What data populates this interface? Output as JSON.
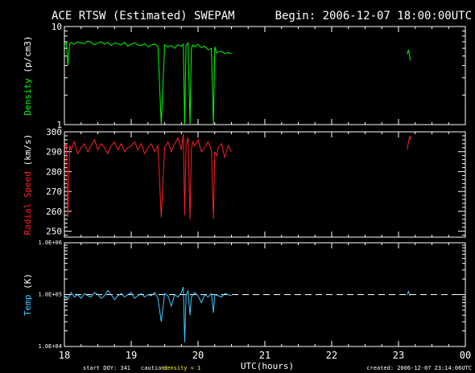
{
  "title": "ACE RTSW (Estimated) SWEPAM",
  "begin_label": "Begin: 2006-12-07 18:00:00UTC",
  "footer": {
    "start_doy": "start DOY: 341",
    "caution_label": "caution:",
    "caution_value": "density < 1",
    "xlabel": "UTC(hours)",
    "created": "created: 2006-12-07 23:14:06UTC"
  },
  "colors": {
    "background": "#000000",
    "frame": "#ffffff",
    "density": "#00ff00",
    "speed": "#ff2020",
    "temp": "#40c8ff",
    "caution": "#ffff00"
  },
  "chart_data": [
    {
      "type": "line",
      "ylabel": "Density (p/cm3)",
      "yscale": "log",
      "ylim": [
        1,
        10
      ],
      "yticks": [
        "1",
        "10"
      ],
      "xlim": [
        18,
        24
      ],
      "xticks": [
        "18",
        "19",
        "20",
        "21",
        "22",
        "23",
        "00"
      ],
      "series": [
        {
          "x": [
            18.0,
            18.03,
            18.05,
            18.08,
            18.1,
            18.15,
            18.2,
            18.25,
            18.3,
            18.35,
            18.4,
            18.45,
            18.5,
            18.55,
            18.6,
            18.65,
            18.7,
            18.75,
            18.8,
            18.85,
            18.9,
            18.95,
            19.0,
            19.05,
            19.1,
            19.15,
            19.2,
            19.25,
            19.3,
            19.35,
            19.4,
            19.45,
            19.5,
            19.55,
            19.6,
            19.65,
            19.7,
            19.75,
            19.78,
            19.8,
            19.82,
            19.85,
            19.88,
            19.9,
            19.92,
            19.95,
            20.0,
            20.05,
            20.1,
            20.15,
            20.2,
            20.23,
            20.25,
            20.28,
            20.3,
            20.35,
            20.4,
            20.45,
            20.5
          ],
          "values": [
            6.5,
            6.8,
            4.0,
            6.7,
            6.9,
            6.6,
            7.0,
            6.8,
            6.7,
            7.1,
            6.9,
            6.5,
            6.8,
            7.0,
            6.6,
            6.9,
            6.4,
            6.8,
            6.7,
            6.5,
            6.9,
            6.3,
            6.6,
            6.8,
            6.5,
            6.4,
            6.7,
            6.2,
            6.5,
            6.6,
            6.3,
            1.0,
            6.5,
            6.2,
            6.4,
            6.0,
            6.5,
            6.3,
            6.6,
            1.0,
            6.4,
            6.8,
            1.0,
            5.9,
            6.5,
            6.2,
            6.6,
            6.1,
            6.3,
            5.8,
            6.0,
            1.0,
            6.2,
            5.4,
            5.5,
            5.6,
            5.3,
            5.4,
            5.3
          ]
        },
        {
          "x": [
            23.13,
            23.15,
            23.17,
            23.18
          ],
          "values": [
            5.2,
            5.8,
            4.9,
            4.5
          ]
        }
      ]
    },
    {
      "type": "line",
      "ylabel": "Radial Speed (km/s)",
      "ylim": [
        247,
        300
      ],
      "yticks": [
        "250",
        "260",
        "270",
        "280",
        "290",
        "300"
      ],
      "xlim": [
        18,
        24
      ],
      "xticks": [
        "18",
        "19",
        "20",
        "21",
        "22",
        "23",
        "00"
      ],
      "series": [
        {
          "x": [
            18.0,
            18.03,
            18.05,
            18.08,
            18.1,
            18.15,
            18.2,
            18.25,
            18.3,
            18.35,
            18.4,
            18.45,
            18.5,
            18.55,
            18.6,
            18.65,
            18.7,
            18.75,
            18.8,
            18.85,
            18.9,
            18.95,
            19.0,
            19.05,
            19.1,
            19.15,
            19.2,
            19.25,
            19.3,
            19.35,
            19.4,
            19.45,
            19.5,
            19.55,
            19.6,
            19.65,
            19.7,
            19.75,
            19.78,
            19.8,
            19.82,
            19.85,
            19.88,
            19.9,
            19.92,
            19.95,
            20.0,
            20.05,
            20.1,
            20.15,
            20.2,
            20.23,
            20.25,
            20.28,
            20.3,
            20.35,
            20.4,
            20.45,
            20.5
          ],
          "values": [
            292,
            294,
            257,
            293,
            291,
            295,
            289,
            292,
            294,
            290,
            293,
            296,
            291,
            294,
            292,
            289,
            293,
            295,
            291,
            294,
            290,
            292,
            293,
            295,
            291,
            294,
            289,
            292,
            294,
            290,
            293,
            257,
            292,
            295,
            290,
            294,
            297,
            291,
            299,
            258,
            293,
            297,
            256,
            291,
            295,
            293,
            296,
            290,
            292,
            295,
            291,
            256,
            290,
            288,
            292,
            294,
            287,
            293,
            290
          ]
        },
        {
          "x": [
            23.13,
            23.15,
            23.17,
            23.18
          ],
          "values": [
            291,
            295,
            298,
            296
          ]
        }
      ]
    },
    {
      "type": "line",
      "ylabel": "Temp (K)",
      "yscale": "log",
      "ylim": [
        10000,
        1000000
      ],
      "yticks": [
        "1.0E+04",
        "1.0E+05",
        "1.0E+06"
      ],
      "reference_line": 100000,
      "xlim": [
        18,
        24
      ],
      "xticks": [
        "18",
        "19",
        "20",
        "21",
        "22",
        "23",
        "00"
      ],
      "series": [
        {
          "x": [
            18.0,
            18.05,
            18.1,
            18.15,
            18.2,
            18.25,
            18.3,
            18.35,
            18.4,
            18.45,
            18.5,
            18.55,
            18.6,
            18.65,
            18.7,
            18.75,
            18.8,
            18.85,
            18.9,
            18.95,
            19.0,
            19.05,
            19.1,
            19.15,
            19.2,
            19.25,
            19.3,
            19.35,
            19.4,
            19.45,
            19.5,
            19.55,
            19.6,
            19.65,
            19.7,
            19.75,
            19.78,
            19.8,
            19.82,
            19.85,
            19.88,
            19.9,
            19.95,
            20.0,
            20.05,
            20.1,
            20.15,
            20.2,
            20.23,
            20.25,
            20.3,
            20.35,
            20.4,
            20.45,
            20.5
          ],
          "values": [
            95000,
            80000,
            110000,
            90000,
            100000,
            85000,
            105000,
            95000,
            90000,
            110000,
            100000,
            85000,
            95000,
            120000,
            100000,
            80000,
            95000,
            105000,
            90000,
            100000,
            110000,
            85000,
            95000,
            105000,
            90000,
            100000,
            95000,
            110000,
            85000,
            30000,
            105000,
            95000,
            60000,
            100000,
            90000,
            110000,
            140000,
            12000,
            95000,
            120000,
            40000,
            90000,
            110000,
            95000,
            70000,
            100000,
            90000,
            105000,
            45000,
            100000,
            95000,
            90000,
            105000,
            100000,
            95000
          ]
        },
        {
          "x": [
            23.13,
            23.15,
            23.17
          ],
          "values": [
            100000,
            115000,
            95000
          ]
        }
      ]
    }
  ]
}
